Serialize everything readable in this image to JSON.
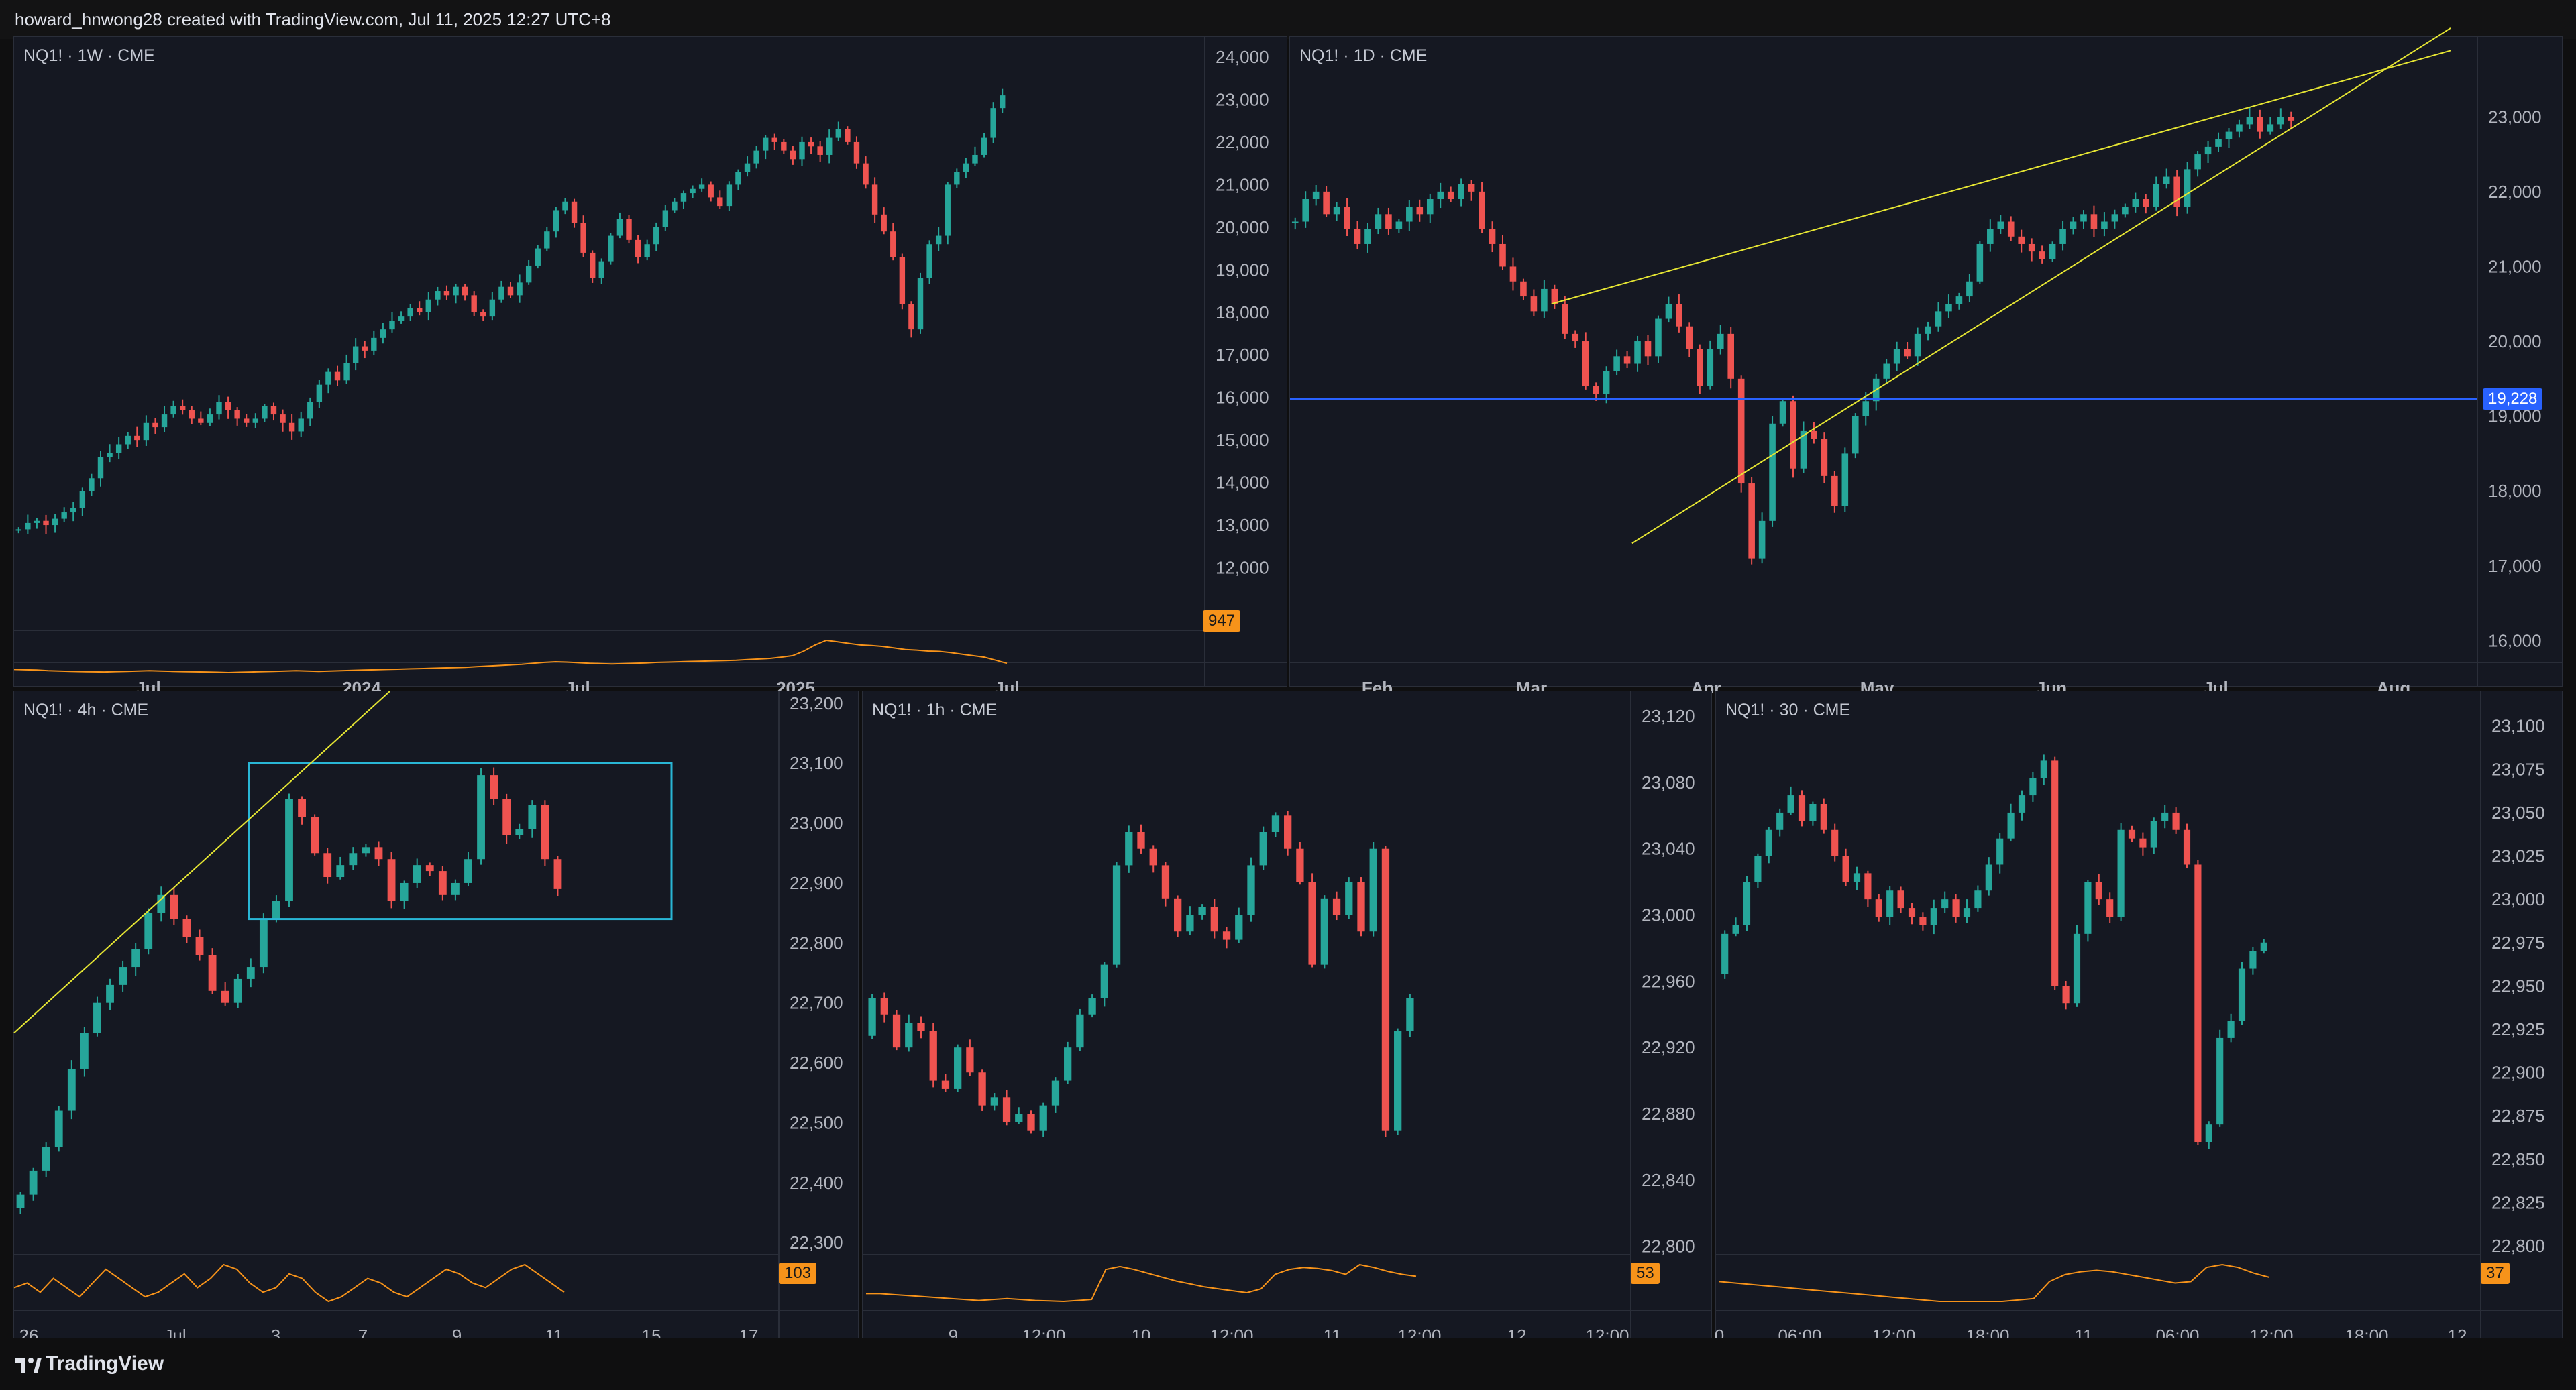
{
  "header": {
    "attribution": "howard_hnwong28 created with TradingView.com, Jul 11, 2025 12:27 UTC+8"
  },
  "footer": {
    "brand": "TradingView"
  },
  "colors": {
    "up": "#26a69a",
    "down": "#ef5350",
    "background": "#151822",
    "grid": "#1f2330",
    "axis_text": "#b2b5be",
    "oscillator": "#f7931a",
    "trendline": "#e6e633",
    "level_line": "#2962ff",
    "range_box": "#29b6d6"
  },
  "chart_data": [
    {
      "id": "weekly",
      "type": "candlestick",
      "title": "NQ1! · 1W · CME",
      "y_ticks": [
        "24,000",
        "23,000",
        "22,000",
        "21,000",
        "20,000",
        "19,000",
        "18,000",
        "17,000",
        "16,000",
        "15,000",
        "14,000",
        "13,000",
        "12,000"
      ],
      "ylim": [
        11000,
        24000
      ],
      "x_ticks": [
        "Jul",
        "2024",
        "Jul",
        "2025",
        "Jul"
      ],
      "closes": [
        12900,
        13050,
        13100,
        13000,
        13150,
        13300,
        13400,
        13800,
        14100,
        14600,
        14700,
        14900,
        15100,
        15000,
        15400,
        15300,
        15600,
        15800,
        15700,
        15500,
        15400,
        15600,
        15900,
        15700,
        15500,
        15400,
        15500,
        15800,
        15600,
        15400,
        15200,
        15500,
        15900,
        16300,
        16600,
        16400,
        16800,
        17200,
        17100,
        17400,
        17600,
        17800,
        17900,
        18100,
        18000,
        18300,
        18500,
        18400,
        18600,
        18400,
        18000,
        17900,
        18300,
        18600,
        18400,
        18700,
        19100,
        19500,
        19900,
        20400,
        20600,
        20100,
        19400,
        18800,
        19200,
        19800,
        20200,
        19700,
        19300,
        19600,
        20000,
        20400,
        20600,
        20800,
        20900,
        21000,
        20700,
        20500,
        21000,
        21300,
        21500,
        21800,
        22100,
        22000,
        21800,
        21600,
        22000,
        21900,
        21700,
        22100,
        22300,
        22000,
        21500,
        21000,
        20300,
        19900,
        19300,
        18200,
        17600,
        18800,
        19600,
        19800,
        21000,
        21300,
        21500,
        21700,
        22100,
        22800,
        23100
      ],
      "oscillator": {
        "last_value": "947",
        "values": [
          70,
          68,
          66,
          62,
          60,
          58,
          56,
          55,
          54,
          56,
          58,
          60,
          62,
          60,
          58,
          56,
          55,
          54,
          52,
          50,
          52,
          54,
          56,
          58,
          60,
          62,
          60,
          58,
          60,
          62,
          64,
          66,
          68,
          70,
          72,
          74,
          76,
          78,
          80,
          82,
          84,
          88,
          92,
          96,
          100,
          104,
          110,
          116,
          120,
          118,
          114,
          110,
          108,
          106,
          108,
          110,
          112,
          116,
          118,
          120,
          122,
          124,
          126,
          128,
          130,
          134,
          138,
          142,
          150,
          160,
          190,
          230,
          260,
          250,
          240,
          230,
          226,
          220,
          210,
          200,
          196,
          190,
          188,
          180,
          170,
          160,
          150,
          130,
          110
        ]
      }
    },
    {
      "id": "daily",
      "type": "candlestick",
      "title": "NQ1! · 1D · CME",
      "y_ticks": [
        "23,000",
        "22,000",
        "21,000",
        "20,000",
        "19,000",
        "18,000",
        "17,000",
        "16,000"
      ],
      "ylim": [
        15600,
        23800
      ],
      "x_ticks": [
        "Feb",
        "Mar",
        "Apr",
        "May",
        "Jun",
        "Jul",
        "Aug"
      ],
      "closes": [
        21600,
        21900,
        22000,
        21700,
        21800,
        21500,
        21300,
        21500,
        21700,
        21500,
        21600,
        21800,
        21700,
        21900,
        22000,
        21900,
        22100,
        22000,
        21500,
        21300,
        21000,
        20800,
        20600,
        20400,
        20700,
        20500,
        20100,
        20000,
        19400,
        19300,
        19600,
        19800,
        19700,
        20000,
        19800,
        20300,
        20500,
        20200,
        19900,
        19400,
        19900,
        20100,
        19500,
        18100,
        17100,
        17600,
        18900,
        19200,
        18300,
        18800,
        18700,
        18200,
        17800,
        18500,
        19000,
        19200,
        19500,
        19700,
        19900,
        19800,
        20100,
        20200,
        20400,
        20500,
        20600,
        20800,
        21300,
        21500,
        21600,
        21400,
        21300,
        21200,
        21100,
        21300,
        21500,
        21600,
        21700,
        21500,
        21600,
        21700,
        21800,
        21900,
        21800,
        22100,
        22200,
        21800,
        22300,
        22500,
        22600,
        22700,
        22800,
        22900,
        23000,
        22800,
        22900,
        23000,
        22950
      ],
      "level": {
        "label": "19,228",
        "value": 19228
      },
      "trendlines": [
        {
          "x1_day": 51,
          "y1": 20500,
          "x2_day": 160,
          "y2": 22900
        },
        {
          "x1_day": 65,
          "y1": 17300,
          "x2_day": 160,
          "y2": 23200
        }
      ]
    },
    {
      "id": "h4",
      "type": "candlestick",
      "title": "NQ1! · 4h · CME",
      "y_ticks": [
        "23,200",
        "23,100",
        "23,000",
        "22,900",
        "22,800",
        "22,700",
        "22,600",
        "22,500",
        "22,400",
        "22,300"
      ],
      "ylim": [
        22280,
        23220
      ],
      "x_ticks": [
        "26",
        "Jul",
        "3",
        "7",
        "9",
        "11",
        "15",
        "17"
      ],
      "closes": [
        22380,
        22420,
        22460,
        22520,
        22590,
        22650,
        22700,
        22730,
        22760,
        22790,
        22850,
        22880,
        22840,
        22810,
        22780,
        22720,
        22700,
        22740,
        22760,
        22840,
        22870,
        23040,
        23010,
        22950,
        22910,
        22930,
        22950,
        22960,
        22940,
        22870,
        22900,
        22930,
        22920,
        22880,
        22900,
        22940,
        23080,
        23040,
        22980,
        22990,
        23030,
        22940,
        22890
      ],
      "oscillator": {
        "last_value": "103",
        "values": [
          40,
          42,
          38,
          44,
          40,
          36,
          42,
          48,
          44,
          40,
          36,
          38,
          42,
          46,
          40,
          44,
          50,
          48,
          42,
          38,
          40,
          46,
          44,
          38,
          34,
          36,
          40,
          44,
          42,
          38,
          36,
          40,
          44,
          48,
          46,
          42,
          40,
          44,
          48,
          50,
          46,
          42,
          38
        ]
      },
      "range_box": {
        "y_top": 23100,
        "y_bottom": 22840
      },
      "trendline": {
        "y_at_start": 22650,
        "y_at_end": 23220
      }
    },
    {
      "id": "h1",
      "type": "candlestick",
      "title": "NQ1! · 1h · CME",
      "y_ticks": [
        "23,120",
        "23,080",
        "23,040",
        "23,000",
        "22,960",
        "22,920",
        "22,880",
        "22,840",
        "22,800"
      ],
      "ylim": [
        22795,
        23135
      ],
      "x_ticks": [
        "9",
        "12:00",
        "10",
        "12:00",
        "11",
        "12:00",
        "12",
        "12:00"
      ],
      "closes": [
        22950,
        22940,
        22920,
        22935,
        22930,
        22900,
        22895,
        22920,
        22905,
        22885,
        22890,
        22875,
        22880,
        22870,
        22885,
        22900,
        22920,
        22940,
        22950,
        22970,
        23030,
        23050,
        23040,
        23030,
        23010,
        22990,
        23000,
        23005,
        22990,
        22985,
        23000,
        23030,
        23050,
        23060,
        23040,
        23020,
        22970,
        23010,
        23000,
        23020,
        22990,
        23040,
        22870,
        22930,
        22950
      ],
      "oscillator": {
        "last_value": "53",
        "values": [
          30,
          30,
          28,
          26,
          24,
          22,
          20,
          18,
          16,
          18,
          20,
          18,
          16,
          15,
          14,
          16,
          18,
          80,
          86,
          80,
          72,
          64,
          56,
          50,
          44,
          40,
          36,
          32,
          40,
          70,
          80,
          84,
          82,
          78,
          70,
          90,
          84,
          76,
          70,
          66
        ]
      }
    },
    {
      "id": "m30",
      "type": "candlestick",
      "title": "NQ1! · 30 · CME",
      "y_ticks": [
        "23,100",
        "23,075",
        "23,050",
        "23,025",
        "23,000",
        "22,975",
        "22,950",
        "22,925",
        "22,900",
        "22,875",
        "22,850",
        "22,825",
        "22,800"
      ],
      "ylim": [
        22795,
        23120
      ],
      "x_ticks": [
        "0",
        "06:00",
        "12:00",
        "18:00",
        "11",
        "06:00",
        "12:00",
        "18:00",
        "12"
      ],
      "closes": [
        22980,
        22985,
        23010,
        23025,
        23040,
        23050,
        23060,
        23045,
        23055,
        23040,
        23025,
        23010,
        23015,
        23000,
        22990,
        23005,
        22995,
        22990,
        22985,
        22995,
        23000,
        22990,
        22995,
        23005,
        23020,
        23035,
        23050,
        23060,
        23070,
        23080,
        22950,
        22940,
        22980,
        23010,
        23000,
        22990,
        23040,
        23035,
        23030,
        23045,
        23050,
        23040,
        23020,
        22860,
        22870,
        22920,
        22930,
        22960,
        22970,
        22975
      ],
      "oscillator": {
        "last_value": "37",
        "values": [
          50,
          48,
          46,
          44,
          42,
          40,
          38,
          36,
          34,
          32,
          30,
          28,
          26,
          24,
          22,
          22,
          22,
          22,
          22,
          24,
          26,
          50,
          60,
          64,
          66,
          64,
          60,
          56,
          52,
          48,
          50,
          70,
          74,
          70,
          62,
          56
        ]
      }
    }
  ]
}
